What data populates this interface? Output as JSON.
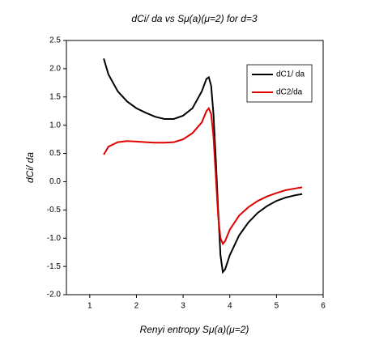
{
  "chart_data": {
    "type": "line",
    "title": "dCi/ da vs Sμ(a)(μ=2) for d=3",
    "x_label": "Renyi entropy Sμ(a)(μ=2)",
    "y_label": "dCi/ da",
    "x": [
      1.3,
      1.4,
      1.6,
      1.8,
      2.0,
      2.2,
      2.4,
      2.6,
      2.8,
      3.0,
      3.2,
      3.4,
      3.5,
      3.55,
      3.6,
      3.65,
      3.7,
      3.75,
      3.8,
      3.85,
      3.9,
      4.0,
      4.2,
      4.4,
      4.6,
      4.8,
      5.0,
      5.2,
      5.4,
      5.55
    ],
    "series": [
      {
        "name": "dC1/ da",
        "color": "#000000",
        "values": [
          2.18,
          1.9,
          1.6,
          1.42,
          1.3,
          1.22,
          1.15,
          1.11,
          1.11,
          1.17,
          1.3,
          1.6,
          1.82,
          1.85,
          1.7,
          1.2,
          0.4,
          -0.5,
          -1.3,
          -1.6,
          -1.55,
          -1.3,
          -0.95,
          -0.72,
          -0.55,
          -0.43,
          -0.34,
          -0.28,
          -0.24,
          -0.22
        ]
      },
      {
        "name": "dC2/da",
        "color": "#e00000",
        "values": [
          0.48,
          0.62,
          0.7,
          0.72,
          0.71,
          0.7,
          0.69,
          0.69,
          0.7,
          0.75,
          0.86,
          1.05,
          1.25,
          1.3,
          1.2,
          0.8,
          0.1,
          -0.6,
          -1.0,
          -1.1,
          -1.05,
          -0.85,
          -0.6,
          -0.45,
          -0.34,
          -0.26,
          -0.2,
          -0.15,
          -0.12,
          -0.1
        ]
      }
    ],
    "xlim": [
      0.5,
      6
    ],
    "xticks": [
      1,
      2,
      3,
      4,
      5,
      6
    ],
    "ylim": [
      -2,
      2.5
    ],
    "yticks": [
      {
        "value": -2,
        "label": "-2.0"
      },
      -1.5,
      {
        "value": -1,
        "label": "-1.0"
      },
      -0.5,
      {
        "value": 0,
        "label": "0.0"
      },
      0.5,
      {
        "value": 1,
        "label": "1.0"
      },
      1.5,
      {
        "value": 2,
        "label": "2.0"
      },
      2.5
    ],
    "legend": "upper right"
  }
}
